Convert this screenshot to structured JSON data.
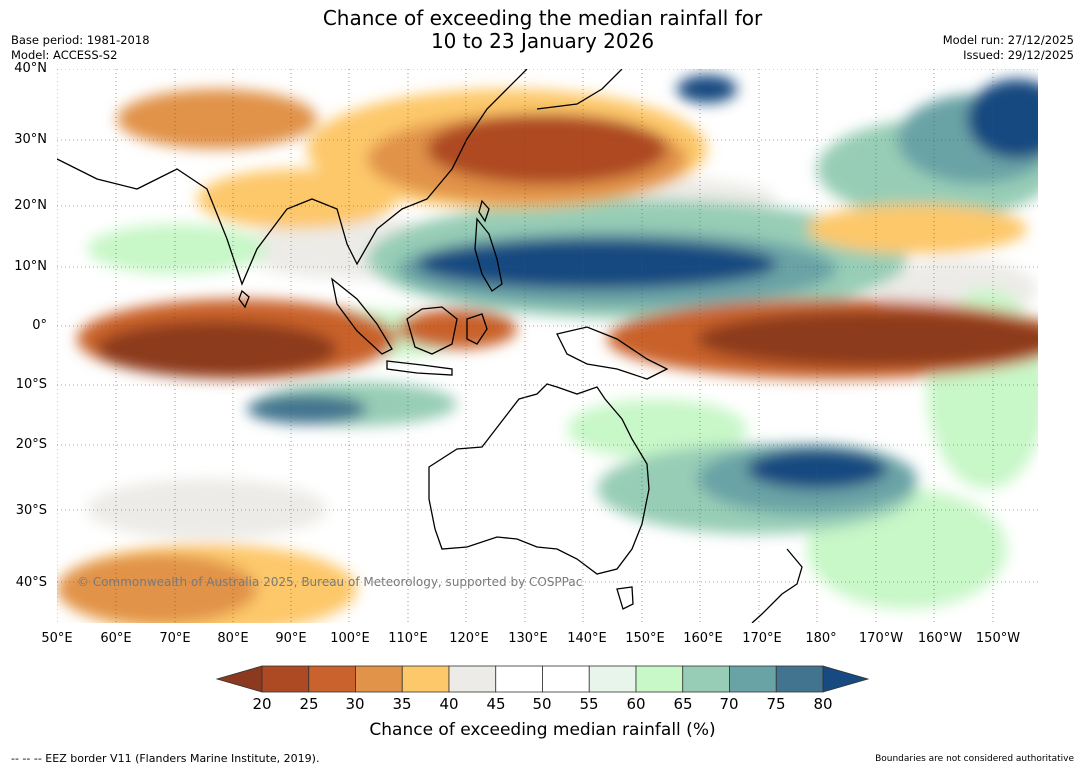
{
  "title_line1": "Chance of exceeding the median rainfall for",
  "title_line2": "10 to 23 January 2026",
  "base_period": "Base period: 1981-2018",
  "model": "Model: ACCESS-S2",
  "model_run": "Model run: 27/12/2025",
  "issued": "Issued: 29/12/2025",
  "lat_labels": [
    "40°N",
    "30°N",
    "20°N",
    "10°N",
    "0°",
    "10°S",
    "20°S",
    "30°S",
    "40°S"
  ],
  "lon_labels": [
    "50°E",
    "60°E",
    "70°E",
    "80°E",
    "90°E",
    "100°E",
    "110°E",
    "120°E",
    "130°E",
    "140°E",
    "150°E",
    "160°E",
    "170°E",
    "180°",
    "170°W",
    "160°W",
    "150°W"
  ],
  "copyright": "© Commonwealth of Australia 2025, Bureau of Meteorology, supported by COSPPac",
  "colorbar": {
    "ticks": [
      "20",
      "25",
      "30",
      "35",
      "40",
      "45",
      "50",
      "55",
      "60",
      "65",
      "70",
      "75",
      "80"
    ],
    "colors": [
      "#8c3a1f",
      "#ae4a23",
      "#c9622c",
      "#e1934a",
      "#fdc86a",
      "#ecebe7",
      "#ffffff",
      "#ffffff",
      "#e8f5ea",
      "#c8f7c8",
      "#97cdb6",
      "#6aa3a6",
      "#42748f",
      "#174a80"
    ],
    "label": "Chance of exceeding median rainfall (%)"
  },
  "footer_left": "--  --  -- EEZ border V11 (Flanders Marine Institute, 2019).",
  "footer_right": "Boundaries are not considered authoritative"
}
